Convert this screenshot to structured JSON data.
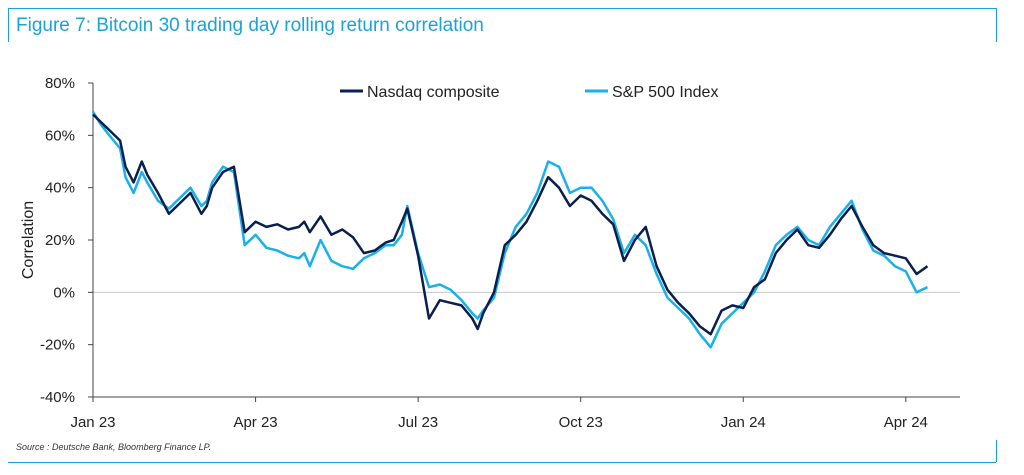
{
  "header": {
    "title": "Figure 7: Bitcoin 30 trading day rolling return correlation"
  },
  "footer": {
    "source": "Source : Deutsche Bank, Bloomberg Finance LP."
  },
  "colors": {
    "accent": "#1aa3d9",
    "nasdaq": "#0b1f4f",
    "sp500": "#1ab0e8",
    "zero_line": "#c8c8c8"
  },
  "chart_data": {
    "type": "line",
    "title": "Figure 7: Bitcoin 30 trading day rolling return correlation",
    "xlabel": "",
    "ylabel": "Correlation",
    "ylim": [
      -40,
      80
    ],
    "ytick_values": [
      80,
      60,
      40,
      20,
      0,
      -20,
      -40
    ],
    "ytick_labels": [
      "80%",
      "60%",
      "40%",
      "20%",
      "0%",
      "-20%",
      "-40%"
    ],
    "xlim": [
      0,
      16
    ],
    "xtick_values": [
      0,
      3,
      6,
      9,
      12,
      15
    ],
    "xtick_labels": [
      "Jan 23",
      "Apr 23",
      "Jul 23",
      "Oct 23",
      "Jan 24",
      "Apr 24"
    ],
    "x_unit": "months since Jan 2023",
    "legend_position": "top",
    "series": [
      {
        "name": "Nasdaq composite",
        "x": [
          0,
          0.15,
          0.3,
          0.5,
          0.6,
          0.75,
          0.9,
          1.0,
          1.2,
          1.4,
          1.6,
          1.8,
          2.0,
          2.1,
          2.2,
          2.4,
          2.6,
          2.8,
          3.0,
          3.2,
          3.4,
          3.6,
          3.8,
          3.9,
          4.0,
          4.2,
          4.4,
          4.6,
          4.8,
          5.0,
          5.2,
          5.4,
          5.55,
          5.7,
          5.8,
          6.0,
          6.2,
          6.4,
          6.6,
          6.8,
          7.0,
          7.1,
          7.2,
          7.4,
          7.6,
          7.8,
          8.0,
          8.2,
          8.4,
          8.6,
          8.8,
          9.0,
          9.2,
          9.4,
          9.6,
          9.8,
          10.0,
          10.2,
          10.4,
          10.6,
          10.8,
          11.0,
          11.2,
          11.4,
          11.6,
          11.8,
          12.0,
          12.2,
          12.4,
          12.6,
          12.8,
          13.0,
          13.2,
          13.4,
          13.6,
          13.8,
          14.0,
          14.2,
          14.4,
          14.6,
          14.8,
          15.0,
          15.2,
          15.4
        ],
        "values": [
          68,
          65,
          62,
          58,
          48,
          42,
          50,
          45,
          38,
          30,
          34,
          38,
          30,
          33,
          40,
          46,
          48,
          23,
          27,
          25,
          26,
          24,
          25,
          27,
          23,
          29,
          22,
          24,
          21,
          15,
          16,
          19,
          20,
          27,
          32,
          14,
          -10,
          -3,
          -4,
          -5,
          -10,
          -14,
          -8,
          0,
          18,
          22,
          27,
          35,
          44,
          40,
          33,
          37,
          35,
          30,
          26,
          12,
          20,
          25,
          10,
          1,
          -4,
          -8,
          -13,
          -16,
          -7,
          -5,
          -6,
          2,
          5,
          15,
          20,
          24,
          18,
          17,
          22,
          28,
          33,
          25,
          18,
          15,
          14,
          13,
          7,
          10
        ]
      },
      {
        "name": "S&P 500 Index",
        "x": [
          0,
          0.15,
          0.3,
          0.5,
          0.6,
          0.75,
          0.9,
          1.0,
          1.2,
          1.4,
          1.6,
          1.8,
          2.0,
          2.1,
          2.2,
          2.4,
          2.6,
          2.8,
          3.0,
          3.2,
          3.4,
          3.6,
          3.8,
          3.9,
          4.0,
          4.2,
          4.4,
          4.6,
          4.8,
          5.0,
          5.2,
          5.4,
          5.55,
          5.7,
          5.8,
          6.0,
          6.2,
          6.4,
          6.6,
          6.8,
          7.0,
          7.1,
          7.2,
          7.4,
          7.6,
          7.8,
          8.0,
          8.2,
          8.4,
          8.6,
          8.8,
          9.0,
          9.2,
          9.4,
          9.6,
          9.8,
          10.0,
          10.2,
          10.4,
          10.6,
          10.8,
          11.0,
          11.2,
          11.4,
          11.6,
          11.8,
          12.0,
          12.2,
          12.4,
          12.6,
          12.8,
          13.0,
          13.2,
          13.4,
          13.6,
          13.8,
          14.0,
          14.2,
          14.4,
          14.6,
          14.8,
          15.0,
          15.2,
          15.4
        ],
        "values": [
          69,
          64,
          60,
          55,
          44,
          38,
          46,
          42,
          35,
          32,
          36,
          40,
          33,
          35,
          42,
          48,
          46,
          18,
          22,
          17,
          16,
          14,
          13,
          15,
          10,
          20,
          12,
          10,
          9,
          13,
          15,
          18,
          18,
          22,
          33,
          15,
          2,
          3,
          1,
          -3,
          -8,
          -10,
          -7,
          -2,
          15,
          25,
          30,
          38,
          50,
          48,
          38,
          40,
          40,
          35,
          28,
          15,
          22,
          18,
          7,
          -2,
          -6,
          -10,
          -16,
          -21,
          -12,
          -8,
          -4,
          0,
          8,
          18,
          22,
          25,
          20,
          18,
          25,
          30,
          35,
          24,
          16,
          14,
          10,
          8,
          0,
          2
        ]
      }
    ]
  }
}
